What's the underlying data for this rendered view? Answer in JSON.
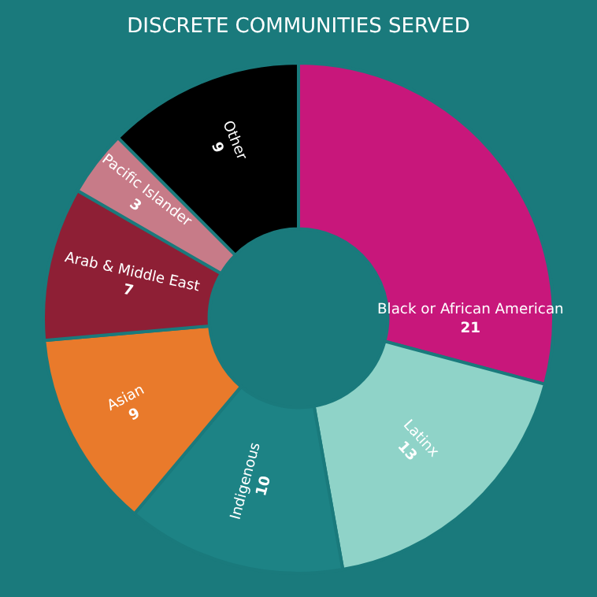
{
  "chart_data": {
    "type": "donut",
    "title": "DISCRETE COMMUNITIES SERVED",
    "categories": [
      "Black or African American",
      "Latinx",
      "Indigenous",
      "Asian",
      "Arab & Middle East",
      "Pacific Islander",
      "Other"
    ],
    "values": [
      21,
      13,
      10,
      9,
      7,
      3,
      9
    ],
    "colors": [
      "#c8177b",
      "#8fd3c8",
      "#1d8385",
      "#e97a2b",
      "#8e1f35",
      "#c77b88",
      "#000000"
    ],
    "data_labels": true
  }
}
